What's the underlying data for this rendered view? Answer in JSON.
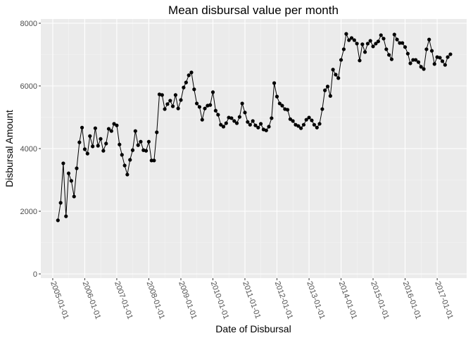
{
  "chart_data": {
    "type": "line",
    "title": "Mean disbursal value per month",
    "x_label": "Date of Disbursal",
    "y_label": "Disbursal Amount",
    "x": [
      "2005-03-01",
      "2005-04-01",
      "2005-05-01",
      "2005-06-01",
      "2005-07-01",
      "2005-08-01",
      "2005-09-01",
      "2005-10-01",
      "2005-11-01",
      "2005-12-01",
      "2006-01-01",
      "2006-02-01",
      "2006-03-01",
      "2006-04-01",
      "2006-05-01",
      "2006-06-01",
      "2006-07-01",
      "2006-08-01",
      "2006-09-01",
      "2006-10-01",
      "2006-11-01",
      "2006-12-01",
      "2007-01-01",
      "2007-02-01",
      "2007-03-01",
      "2007-04-01",
      "2007-05-01",
      "2007-06-01",
      "2007-07-01",
      "2007-08-01",
      "2007-09-01",
      "2007-10-01",
      "2007-11-01",
      "2007-12-01",
      "2008-01-01",
      "2008-02-01",
      "2008-03-01",
      "2008-04-01",
      "2008-05-01",
      "2008-06-01",
      "2008-07-01",
      "2008-08-01",
      "2008-09-01",
      "2008-10-01",
      "2008-11-01",
      "2008-12-01",
      "2009-01-01",
      "2009-02-01",
      "2009-03-01",
      "2009-04-01",
      "2009-05-01",
      "2009-06-01",
      "2009-07-01",
      "2009-08-01",
      "2009-09-01",
      "2009-10-01",
      "2009-11-01",
      "2009-12-01",
      "2010-01-01",
      "2010-02-01",
      "2010-03-01",
      "2010-04-01",
      "2010-05-01",
      "2010-06-01",
      "2010-07-01",
      "2010-08-01",
      "2010-09-01",
      "2010-10-01",
      "2010-11-01",
      "2010-12-01",
      "2011-01-01",
      "2011-02-01",
      "2011-03-01",
      "2011-04-01",
      "2011-05-01",
      "2011-06-01",
      "2011-07-01",
      "2011-08-01",
      "2011-09-01",
      "2011-10-01",
      "2011-11-01",
      "2011-12-01",
      "2012-01-01",
      "2012-02-01",
      "2012-03-01",
      "2012-04-01",
      "2012-05-01",
      "2012-06-01",
      "2012-07-01",
      "2012-08-01",
      "2012-09-01",
      "2012-10-01",
      "2012-11-01",
      "2012-12-01",
      "2013-01-01",
      "2013-02-01",
      "2013-03-01",
      "2013-04-01",
      "2013-05-01",
      "2013-06-01",
      "2013-07-01",
      "2013-08-01",
      "2013-09-01",
      "2013-10-01",
      "2013-11-01",
      "2013-12-01",
      "2014-01-01",
      "2014-02-01",
      "2014-03-01",
      "2014-04-01",
      "2014-05-01",
      "2014-06-01",
      "2014-07-01",
      "2014-08-01",
      "2014-09-01",
      "2014-10-01",
      "2014-11-01",
      "2014-12-01",
      "2015-01-01",
      "2015-02-01",
      "2015-03-01",
      "2015-04-01",
      "2015-05-01",
      "2015-06-01",
      "2015-07-01",
      "2015-08-01",
      "2015-09-01",
      "2015-10-01",
      "2015-11-01",
      "2015-12-01",
      "2016-01-01",
      "2016-02-01",
      "2016-03-01",
      "2016-04-01",
      "2016-05-01",
      "2016-06-01",
      "2016-07-01",
      "2016-08-01",
      "2016-09-01",
      "2016-10-01",
      "2016-11-01",
      "2016-12-01",
      "2017-01-01",
      "2017-02-01",
      "2017-03-01",
      "2017-04-01",
      "2017-05-01",
      "2017-06-01"
    ],
    "series": [
      {
        "color": "#000000",
        "values": [
          1710,
          2270,
          3530,
          1840,
          3210,
          2970,
          2470,
          3370,
          4200,
          4670,
          3980,
          3840,
          4400,
          4070,
          4650,
          4090,
          4310,
          3930,
          4160,
          4630,
          4560,
          4790,
          4740,
          4130,
          3800,
          3460,
          3170,
          3640,
          3950,
          4560,
          4110,
          4220,
          3950,
          3930,
          4220,
          3620,
          3620,
          4520,
          5730,
          5710,
          5260,
          5420,
          5530,
          5350,
          5710,
          5280,
          5550,
          5950,
          6110,
          6340,
          6430,
          5890,
          5440,
          5330,
          4920,
          5280,
          5370,
          5390,
          5800,
          5210,
          5080,
          4760,
          4700,
          4810,
          4990,
          4970,
          4880,
          4810,
          5010,
          5440,
          5150,
          4850,
          4760,
          4880,
          4740,
          4670,
          4790,
          4610,
          4580,
          4700,
          4970,
          6090,
          5660,
          5440,
          5370,
          5260,
          5240,
          4940,
          4880,
          4760,
          4720,
          4650,
          4760,
          4920,
          4990,
          4900,
          4760,
          4670,
          4790,
          5260,
          5860,
          5980,
          5680,
          6520,
          6360,
          6250,
          6830,
          7170,
          7660,
          7460,
          7530,
          7460,
          7350,
          6810,
          7330,
          7080,
          7350,
          7440,
          7260,
          7350,
          7420,
          7620,
          7510,
          7170,
          6990,
          6850,
          7640,
          7480,
          7370,
          7370,
          7240,
          7030,
          6720,
          6830,
          6830,
          6760,
          6610,
          6540,
          7170,
          7480,
          7120,
          6700,
          6920,
          6900,
          6790,
          6670,
          6920,
          7010
        ]
      }
    ],
    "xlim": [
      "2004-08-18",
      "2017-12-03"
    ],
    "xticks": [
      "2005-01-01",
      "2006-01-01",
      "2007-01-01",
      "2008-01-01",
      "2009-01-01",
      "2010-01-01",
      "2011-01-01",
      "2012-01-01",
      "2013-01-01",
      "2014-01-01",
      "2015-01-01",
      "2016-01-01",
      "2017-01-01"
    ],
    "ylim": [
      -135,
      8135
    ],
    "yticks": [
      0,
      2000,
      4000,
      6000,
      8000
    ],
    "grid": true
  }
}
